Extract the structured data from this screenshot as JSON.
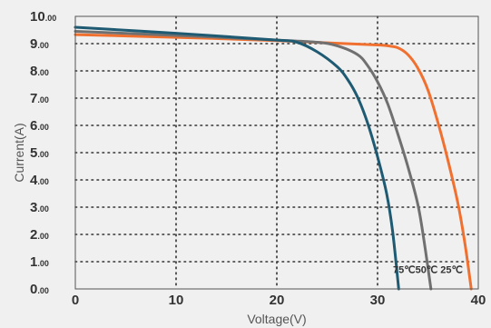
{
  "chart_data": {
    "type": "line",
    "xlabel": "Voltage(V)",
    "ylabel": "Current(A)",
    "xlim": [
      0,
      40
    ],
    "ylim": [
      0,
      10
    ],
    "x_ticks": [
      "0",
      "10",
      "20",
      "30",
      "40"
    ],
    "y_ticks": [
      {
        "value": 0,
        "main": "0",
        "dec": ".00"
      },
      {
        "value": 1,
        "main": "1",
        "dec": ".00"
      },
      {
        "value": 2,
        "main": "2",
        "dec": ".00"
      },
      {
        "value": 3,
        "main": "3",
        "dec": ".00"
      },
      {
        "value": 4,
        "main": "4",
        "dec": ".00"
      },
      {
        "value": 5,
        "main": "5",
        "dec": ".00"
      },
      {
        "value": 6,
        "main": "6",
        "dec": ".00"
      },
      {
        "value": 7,
        "main": "7",
        "dec": ".00"
      },
      {
        "value": 8,
        "main": "8",
        "dec": ".00"
      },
      {
        "value": 9,
        "main": "9",
        "dec": ".00"
      },
      {
        "value": 10,
        "main": "10",
        "dec": ".00"
      }
    ],
    "grid": true,
    "annotation": "75℃50℃ 25℃",
    "series": [
      {
        "name": "25℃",
        "color": "#f07030",
        "points": [
          [
            0,
            9.33
          ],
          [
            10,
            9.23
          ],
          [
            20,
            9.11
          ],
          [
            25,
            9.03
          ],
          [
            30,
            8.95
          ],
          [
            31,
            8.92
          ],
          [
            32,
            8.85
          ],
          [
            33,
            8.6
          ],
          [
            34,
            8.1
          ],
          [
            35,
            7.3
          ],
          [
            36,
            6.1
          ],
          [
            37,
            4.7
          ],
          [
            38,
            3.1
          ],
          [
            38.7,
            1.6
          ],
          [
            39.3,
            0
          ]
        ]
      },
      {
        "name": "50℃",
        "color": "#707070",
        "points": [
          [
            0,
            9.45
          ],
          [
            10,
            9.3
          ],
          [
            20,
            9.13
          ],
          [
            24,
            9.05
          ],
          [
            26,
            8.92
          ],
          [
            28,
            8.6
          ],
          [
            29,
            8.2
          ],
          [
            30,
            7.6
          ],
          [
            31,
            6.8
          ],
          [
            32,
            5.7
          ],
          [
            33,
            4.5
          ],
          [
            34,
            3.1
          ],
          [
            34.6,
            1.8
          ],
          [
            35.3,
            0
          ]
        ]
      },
      {
        "name": "75℃",
        "color": "#1e5a72",
        "points": [
          [
            0,
            9.6
          ],
          [
            10,
            9.38
          ],
          [
            20,
            9.13
          ],
          [
            22,
            9.05
          ],
          [
            24,
            8.7
          ],
          [
            26,
            8.15
          ],
          [
            27,
            7.7
          ],
          [
            28,
            7.05
          ],
          [
            29,
            6.1
          ],
          [
            30,
            4.85
          ],
          [
            30.9,
            3.5
          ],
          [
            31.5,
            2.1
          ],
          [
            32.1,
            0
          ]
        ]
      }
    ]
  }
}
